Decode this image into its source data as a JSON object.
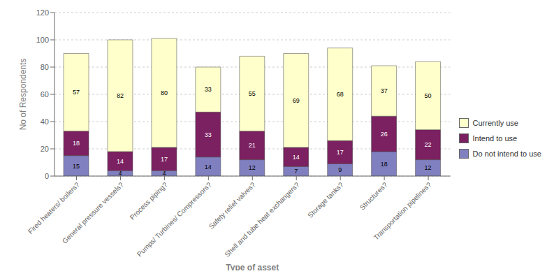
{
  "chart_data": {
    "type": "bar",
    "stacked": true,
    "data_labels": true,
    "grid": true,
    "legend": "right",
    "xlabel": "Type of asset",
    "ylabel": "No of Respondents",
    "categories": [
      "Fired heaters/ boilers?",
      "General pressure vessels?",
      "Process piping?",
      "Pumps/ Turbines/ Compressors?",
      "Safety relief valves?",
      "Shell and tube heat exchangers?",
      "Storage tanks?",
      "Structures?",
      "Transportation pipelines?"
    ],
    "series": [
      {
        "name": "Do not intend to use",
        "color": "#8080c0",
        "values": [
          15,
          4,
          4,
          14,
          12,
          7,
          9,
          18,
          12
        ]
      },
      {
        "name": "Intend to use",
        "color": "#7b2060",
        "values": [
          18,
          14,
          17,
          33,
          21,
          14,
          17,
          26,
          22
        ]
      },
      {
        "name": "Currently use",
        "color": "#ffffcc",
        "values": [
          57,
          82,
          80,
          33,
          55,
          69,
          68,
          37,
          50
        ]
      }
    ],
    "ylim": [
      0,
      120
    ],
    "yticks": [
      0,
      20,
      40,
      60,
      80,
      100,
      120
    ]
  }
}
